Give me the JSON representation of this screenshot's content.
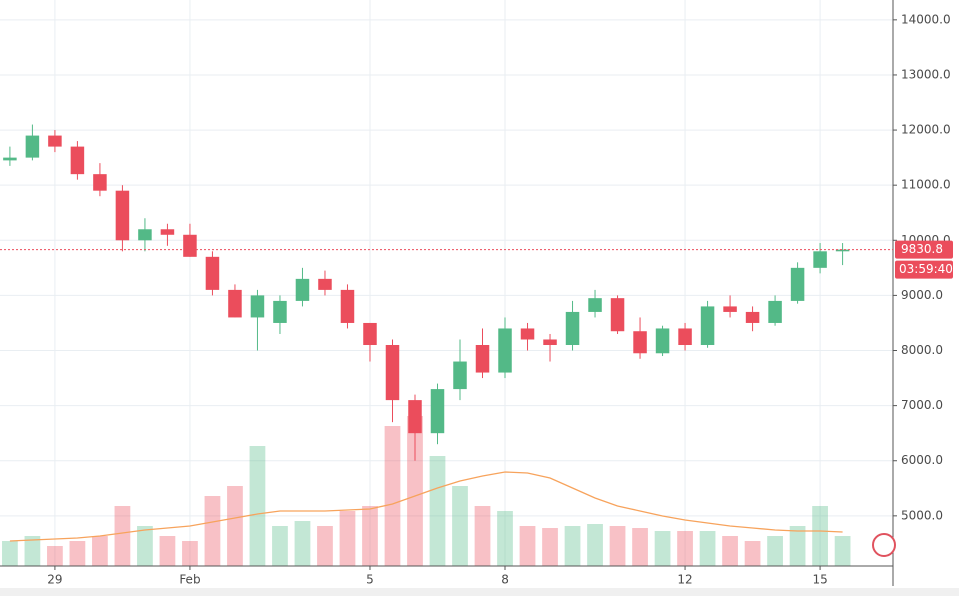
{
  "chart_data": {
    "type": "candlestick",
    "x": [
      -1,
      -0.5,
      0,
      0.5,
      1,
      1.5,
      2,
      2.5,
      3,
      3.5,
      4,
      4.5,
      5,
      5.5,
      6,
      6.5,
      7,
      7.5,
      8,
      8.5,
      9,
      9.5,
      10,
      10.5,
      11,
      11.5,
      12,
      12.5,
      13,
      13.5,
      14,
      14.5,
      15,
      15.5,
      16,
      16.5,
      17,
      17.5
    ],
    "open": [
      11450,
      11500,
      11900,
      11700,
      11200,
      10900,
      10000,
      10200,
      10100,
      9700,
      9100,
      8600,
      8500,
      8900,
      9300,
      9100,
      8500,
      8100,
      7100,
      6500,
      7300,
      8100,
      7600,
      8400,
      8200,
      8100,
      8700,
      8950,
      8350,
      7950,
      8400,
      8100,
      8800,
      8700,
      8500,
      8900,
      9500,
      9800
    ],
    "high": [
      11700,
      12100,
      12000,
      11800,
      11400,
      11000,
      10400,
      10300,
      10300,
      9800,
      9200,
      9100,
      9000,
      9500,
      9450,
      9200,
      8500,
      8200,
      7200,
      7400,
      8200,
      8400,
      8600,
      8500,
      8300,
      8900,
      9100,
      9000,
      8600,
      8450,
      8500,
      8900,
      9000,
      8800,
      9000,
      9600,
      9950,
      9950
    ],
    "low": [
      11350,
      11450,
      11600,
      11100,
      10800,
      9800,
      9800,
      9900,
      9700,
      9000,
      8600,
      8000,
      8300,
      8800,
      9000,
      8400,
      7800,
      6700,
      6000,
      6300,
      7100,
      7500,
      7500,
      8000,
      7800,
      8000,
      8600,
      8300,
      7850,
      7900,
      8000,
      8050,
      8600,
      8350,
      8450,
      8850,
      9400,
      9550
    ],
    "close": [
      11500,
      11900,
      11700,
      11200,
      10900,
      10000,
      10200,
      10100,
      9700,
      9100,
      8600,
      9000,
      8900,
      9300,
      9100,
      8500,
      8100,
      7100,
      6500,
      7300,
      7800,
      7600,
      8400,
      8200,
      8100,
      8700,
      8950,
      8350,
      7950,
      8400,
      8100,
      8800,
      8700,
      8500,
      8900,
      9500,
      9800,
      9830.8
    ],
    "volume": [
      25,
      30,
      20,
      25,
      30,
      60,
      40,
      30,
      25,
      70,
      80,
      120,
      40,
      45,
      40,
      55,
      60,
      140,
      150,
      110,
      80,
      60,
      55,
      40,
      38,
      40,
      42,
      40,
      38,
      35,
      35,
      35,
      30,
      25,
      30,
      40,
      60,
      30
    ],
    "ma": [
      25,
      26,
      27,
      28,
      30,
      33,
      36,
      38,
      40,
      44,
      48,
      52,
      55,
      55,
      55,
      56,
      57,
      62,
      70,
      78,
      85,
      90,
      94,
      93,
      88,
      78,
      68,
      60,
      55,
      50,
      46,
      43,
      40,
      38,
      36,
      35,
      35,
      34
    ],
    "xlim": [
      -1.22,
      18.62
    ],
    "ylim": [
      4090,
      14360
    ],
    "vlim": [
      0,
      200
    ],
    "yticks": [
      {
        "value": 5000,
        "label": "5000.0"
      },
      {
        "value": 6000,
        "label": "6000.0"
      },
      {
        "value": 7000,
        "label": "7000.0"
      },
      {
        "value": 8000,
        "label": "8000.0"
      },
      {
        "value": 9000,
        "label": "9000.0"
      },
      {
        "value": 10000,
        "label": "10000.0"
      },
      {
        "value": 11000,
        "label": "11000.0"
      },
      {
        "value": 12000,
        "label": "12000.0"
      },
      {
        "value": 13000,
        "label": "13000.0"
      },
      {
        "value": 14000,
        "label": "14000.0"
      }
    ],
    "xticks": [
      {
        "value": 0,
        "label": "29"
      },
      {
        "value": 3,
        "label": "Feb"
      },
      {
        "value": 7,
        "label": "5"
      },
      {
        "value": 10,
        "label": "8"
      },
      {
        "value": 14,
        "label": "12"
      },
      {
        "value": 17,
        "label": "15"
      }
    ],
    "last_price": 9830.8,
    "countdown": "03:59:40",
    "up_color": "#53b987",
    "down_color": "#eb4d5c",
    "ma_color": "#f7a35c",
    "grid": true
  }
}
